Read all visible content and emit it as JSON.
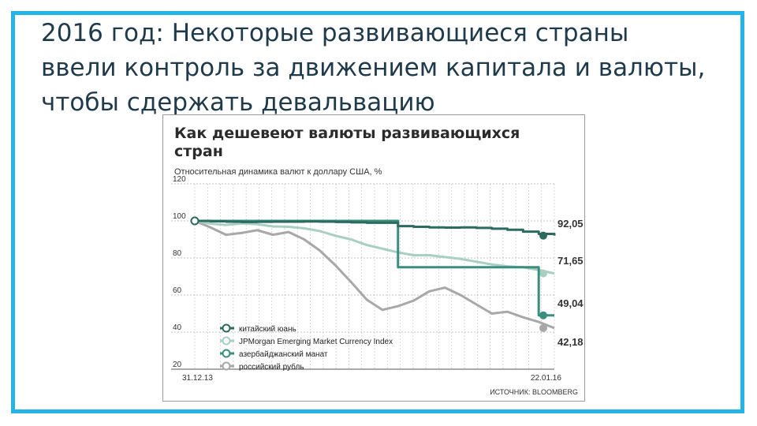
{
  "slide": {
    "heading_lines": [
      "2016 год: Некоторые развивающиеся страны",
      "ввели контроль за движением капитала и валюты,",
      "чтобы сдержать девальвацию"
    ],
    "frame_color": "#24b5e6"
  },
  "chart_data": {
    "type": "line",
    "title": "Как дешевеют валюты развивающихся стран",
    "subtitle": "Относительная динамика валют к доллару США, %",
    "source": "ИСТОЧНИК: BLOOMBERG",
    "x_labels": [
      "31.12.13",
      "22.01.16"
    ],
    "ylim": [
      20,
      120
    ],
    "yticks": [
      120,
      100,
      80,
      60,
      40,
      20
    ],
    "grid": true,
    "legend_position": "bottom-left",
    "series": [
      {
        "name": "китайский юань",
        "color": "#2d6b60",
        "end_label": "92,05",
        "values": [
          100,
          99.8,
          99.6,
          99.4,
          99.5,
          99.6,
          99.6,
          99.7,
          99.6,
          99.4,
          99.2,
          99.0,
          99.0,
          97.2,
          96.8,
          96.5,
          96.4,
          96.5,
          96.2,
          95.8,
          95.2,
          94.2,
          93.0,
          92.05
        ]
      },
      {
        "name": "JPMorgan Emerging Market Currency Index",
        "color": "#a9cfc3",
        "end_label": "71,65",
        "values": [
          100,
          98.5,
          97.8,
          98.6,
          98.2,
          97.0,
          96.8,
          96.0,
          94.5,
          92.0,
          90.0,
          87.0,
          85.0,
          83.0,
          81.5,
          81.5,
          80.5,
          79.5,
          78.0,
          76.5,
          75.5,
          75.0,
          73.5,
          71.65
        ]
      },
      {
        "name": "азербайджанский манат",
        "color": "#3a8e7e",
        "end_label": "49,04",
        "values": [
          100,
          100,
          100,
          100,
          100,
          100,
          100,
          100,
          100,
          100,
          100,
          100,
          100,
          75.0,
          75.0,
          75.0,
          75.0,
          75.0,
          75.0,
          75.0,
          75.0,
          75.0,
          49.04,
          49.04
        ]
      },
      {
        "name": "российский рубль",
        "color": "#a8a8a8",
        "end_label": "42,18",
        "values": [
          100,
          96.5,
          92.5,
          93.5,
          95.0,
          92.5,
          94.0,
          90.0,
          84.0,
          76.0,
          67.0,
          57.5,
          52.0,
          54.0,
          57.0,
          62.0,
          64.0,
          60.0,
          55.0,
          50.0,
          51.0,
          48.0,
          45.5,
          42.18
        ]
      }
    ]
  }
}
